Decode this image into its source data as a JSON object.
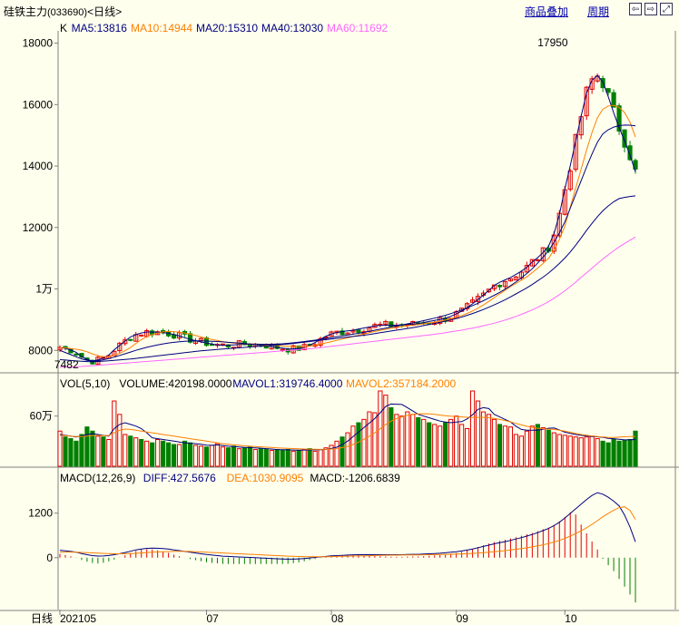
{
  "window": {
    "title": "硅铁主力",
    "code": "(033690)",
    "period_tag": "<日线>",
    "links": [
      "商品叠加",
      "周期"
    ],
    "nav_icons": [
      "arrow-left-icon",
      "arrow-right-icon",
      "expand-icon"
    ]
  },
  "colors": {
    "background": "#ffffee",
    "up": "#e00000",
    "down": "#008000",
    "ma5": "#000080",
    "ma10": "#ff8000",
    "ma20": "#000080",
    "ma40": "#000080",
    "ma60": "#ff66ff",
    "diff": "#000080",
    "dea": "#ff8000"
  },
  "chart_data": [
    {
      "type": "candlestick",
      "panel": "price",
      "legend": [
        {
          "label": "K",
          "color": "#000000"
        },
        {
          "label": "MA5:13816",
          "color": "#000080"
        },
        {
          "label": "MA10:14944",
          "color": "#ff8000"
        },
        {
          "label": "MA20:15310",
          "color": "#000080"
        },
        {
          "label": "MA40:13030",
          "color": "#000080"
        },
        {
          "label": "MA60:11692",
          "color": "#ff66ff"
        }
      ],
      "ylim": [
        7300,
        18400
      ],
      "yticks": [
        {
          "v": 8000,
          "t": "8000"
        },
        {
          "v": 10000,
          "t": "1万"
        },
        {
          "v": 12000,
          "t": "12000"
        },
        {
          "v": 14000,
          "t": "14000"
        },
        {
          "v": 16000,
          "t": "16000"
        },
        {
          "v": 18000,
          "t": "18000"
        }
      ],
      "xticks": [
        {
          "i": 0,
          "t": "202105"
        },
        {
          "i": 27,
          "t": "07"
        },
        {
          "i": 50,
          "t": "08"
        },
        {
          "i": 73,
          "t": "09"
        },
        {
          "i": 93,
          "t": "10"
        }
      ],
      "annotations": [
        {
          "i": 93,
          "v": 17950,
          "t": "17950"
        },
        {
          "i": 4,
          "v": 7482,
          "t": "7482"
        }
      ],
      "candles_count": 107,
      "ma_lines": [
        {
          "name": "MA5",
          "color": "#000080",
          "values": [
            8100,
            8050,
            7950,
            7750,
            7650,
            7700,
            7800,
            8050,
            8250,
            8450,
            8550,
            8600,
            8600,
            8580,
            8550,
            8480,
            8400,
            8330,
            8270,
            8220,
            8180,
            8160,
            8180,
            8200,
            8200,
            8190,
            8170,
            8120,
            8080,
            8050,
            8050,
            8100,
            8200,
            8350,
            8500,
            8580,
            8620,
            8650,
            8700,
            8750,
            8800,
            8820,
            8820,
            8820,
            8850,
            8850,
            8900,
            8950,
            9000,
            9050,
            9150,
            9280,
            9450,
            9650,
            9850,
            10100,
            10250,
            10350,
            10500,
            10650,
            10900,
            11100,
            11400,
            12000,
            13200,
            14300,
            15500,
            16600,
            17000,
            16700,
            15900,
            15200,
            14600,
            13816
          ]
        },
        {
          "name": "MA10",
          "color": "#ff8000",
          "values": [
            8100,
            8075,
            8040,
            8000,
            7900,
            7810,
            7790,
            7840,
            7950,
            8100,
            8300,
            8450,
            8540,
            8600,
            8620,
            8600,
            8560,
            8500,
            8430,
            8370,
            8320,
            8270,
            8240,
            8220,
            8210,
            8200,
            8190,
            8170,
            8150,
            8130,
            8120,
            8120,
            8150,
            8200,
            8260,
            8320,
            8380,
            8440,
            8500,
            8560,
            8620,
            8670,
            8720,
            8760,
            8800,
            8830,
            8860,
            8900,
            8940,
            8990,
            9060,
            9140,
            9240,
            9370,
            9520,
            9700,
            9880,
            10050,
            10200,
            10350,
            10550,
            10760,
            11000,
            11400,
            12000,
            12900,
            13800,
            14700,
            15500,
            15900,
            16000,
            15900,
            15650,
            14944
          ]
        },
        {
          "name": "MA20",
          "color": "#000080",
          "values": [
            8000,
            7900,
            7800,
            7700,
            7650,
            7670,
            7720,
            7790,
            7870,
            7950,
            8030,
            8100,
            8160,
            8210,
            8250,
            8280,
            8300,
            8310,
            8310,
            8300,
            8290,
            8270,
            8250,
            8230,
            8210,
            8200,
            8200,
            8200,
            8210,
            8230,
            8260,
            8290,
            8320,
            8360,
            8400,
            8440,
            8480,
            8520,
            8560,
            8610,
            8660,
            8710,
            8760,
            8810,
            8860,
            8910,
            8960,
            9020,
            9080,
            9150,
            9230,
            9320,
            9420,
            9530,
            9650,
            9780,
            9920,
            10080,
            10250,
            10450,
            10680,
            10950,
            11250,
            11650,
            12150,
            12800,
            13450,
            14100,
            14700,
            15100,
            15250,
            15320,
            15340,
            15310
          ]
        },
        {
          "name": "MA40",
          "color": "#000080",
          "values": [
            7700,
            7680,
            7660,
            7640,
            7630,
            7640,
            7660,
            7680,
            7700,
            7720,
            7750,
            7780,
            7810,
            7840,
            7870,
            7900,
            7930,
            7960,
            7990,
            8010,
            8030,
            8050,
            8070,
            8090,
            8110,
            8130,
            8150,
            8170,
            8190,
            8210,
            8240,
            8270,
            8300,
            8330,
            8360,
            8390,
            8420,
            8450,
            8480,
            8510,
            8550,
            8590,
            8630,
            8670,
            8710,
            8750,
            8800,
            8850,
            8900,
            8960,
            9020,
            9090,
            9170,
            9260,
            9360,
            9470,
            9590,
            9720,
            9860,
            10000,
            10160,
            10330,
            10520,
            10740,
            10990,
            11280,
            11620,
            11980,
            12300,
            12580,
            12800,
            12950,
            13000,
            13030
          ]
        },
        {
          "name": "MA60",
          "color": "#ff66ff",
          "values": [
            7450,
            7460,
            7470,
            7480,
            7500,
            7520,
            7540,
            7560,
            7580,
            7600,
            7620,
            7640,
            7660,
            7680,
            7700,
            7720,
            7740,
            7760,
            7780,
            7800,
            7820,
            7840,
            7860,
            7880,
            7900,
            7920,
            7940,
            7960,
            7980,
            8000,
            8020,
            8040,
            8060,
            8090,
            8120,
            8150,
            8180,
            8210,
            8240,
            8270,
            8300,
            8330,
            8360,
            8390,
            8420,
            8450,
            8480,
            8510,
            8540,
            8580,
            8620,
            8660,
            8710,
            8760,
            8820,
            8880,
            8950,
            9030,
            9120,
            9220,
            9330,
            9450,
            9590,
            9750,
            9930,
            10130,
            10350,
            10570,
            10790,
            11000,
            11200,
            11380,
            11540,
            11692
          ]
        }
      ]
    },
    {
      "type": "bar",
      "panel": "volume",
      "legend": [
        {
          "label": "VOL(5,10)",
          "color": "#000000"
        },
        {
          "label": "VOLUME:420198.0000",
          "color": "#000000"
        },
        {
          "label": "MAVOL1:319746.4000",
          "color": "#000080"
        },
        {
          "label": "MAVOL2:357184.2000",
          "color": "#ff8000"
        }
      ],
      "ylim": [
        0,
        900000
      ],
      "yticks": [
        {
          "v": 600000,
          "t": "60万"
        }
      ],
      "values": [
        420000,
        350000,
        330000,
        300000,
        380000,
        470000,
        420000,
        360000,
        350000,
        320000,
        780000,
        620000,
        380000,
        360000,
        340000,
        320000,
        300000,
        280000,
        320000,
        300000,
        280000,
        260000,
        260000,
        300000,
        280000,
        250000,
        240000,
        230000,
        250000,
        270000,
        230000,
        220000,
        240000,
        210000,
        220000,
        230000,
        200000,
        210000,
        200000,
        190000,
        200000,
        190000,
        200000,
        180000,
        190000,
        200000,
        210000,
        180000,
        200000,
        220000,
        250000,
        300000,
        350000,
        400000,
        480000,
        520000,
        560000,
        650000,
        640000,
        900000,
        850000,
        700000,
        620000,
        600000,
        650000,
        620000,
        580000,
        560000,
        520000,
        500000,
        480000,
        520000,
        560000,
        600000,
        500000,
        450000,
        900000,
        780000,
        650000,
        620000,
        560000,
        500000,
        480000,
        470000,
        380000,
        360000,
        420000,
        480000,
        500000,
        460000,
        430000,
        400000,
        380000,
        370000,
        360000,
        350000,
        340000,
        350000,
        360000,
        330000,
        300000,
        280000,
        320000,
        300000,
        310000,
        320000,
        420198
      ],
      "mavol1": [
        380000,
        370000,
        360000,
        350000,
        360000,
        380000,
        390000,
        380000,
        370000,
        360000,
        450000,
        500000,
        520000,
        500000,
        480000,
        450000,
        400000,
        340000,
        330000,
        320000,
        310000,
        300000,
        290000,
        280000,
        275000,
        270000,
        262000,
        252000,
        250000,
        255000,
        248000,
        240000,
        236000,
        230000,
        226000,
        222000,
        220000,
        216000,
        210000,
        206000,
        200000,
        198000,
        196000,
        194000,
        192000,
        194000,
        196000,
        196000,
        198000,
        202000,
        212000,
        228000,
        260000,
        300000,
        356000,
        410000,
        462000,
        516000,
        570000,
        640000,
        716000,
        744000,
        742000,
        738000,
        700000,
        660000,
        620000,
        600000,
        580000,
        560000,
        540000,
        528000,
        520000,
        528000,
        534000,
        566000,
        616000,
        680000,
        700000,
        690000,
        620000,
        590000,
        560000,
        530000,
        478000,
        440000,
        432000,
        430000,
        432000,
        442000,
        454000,
        458000,
        434000,
        408000,
        392000,
        380000,
        370000,
        362000,
        356000,
        352000,
        346000,
        334000,
        330000,
        322000,
        316000,
        316000,
        319746
      ],
      "mavol2": [
        370000,
        365000,
        360000,
        355000,
        355000,
        360000,
        365000,
        368000,
        368000,
        366000,
        400000,
        430000,
        445000,
        440000,
        430000,
        420000,
        410000,
        400000,
        390000,
        380000,
        370000,
        360000,
        350000,
        340000,
        330000,
        320000,
        310000,
        300000,
        290000,
        280000,
        270000,
        262000,
        256000,
        250000,
        245000,
        240000,
        236000,
        232000,
        228000,
        224000,
        220000,
        217000,
        214000,
        211000,
        208000,
        206000,
        204000,
        203000,
        202000,
        203000,
        206000,
        212000,
        222000,
        238000,
        260000,
        290000,
        322000,
        358000,
        400000,
        448000,
        500000,
        540000,
        570000,
        590000,
        610000,
        620000,
        626000,
        628000,
        626000,
        620000,
        612000,
        604000,
        598000,
        594000,
        590000,
        586000,
        584000,
        584000,
        584000,
        580000,
        572000,
        560000,
        546000,
        530000,
        512000,
        494000,
        478000,
        464000,
        454000,
        448000,
        444000,
        440000,
        432000,
        420000,
        406000,
        392000,
        380000,
        370000,
        362000,
        356000,
        350000,
        345000,
        345000,
        348000,
        352000,
        355000,
        357184
      ]
    },
    {
      "type": "bar",
      "panel": "macd",
      "legend": [
        {
          "label": "MACD(12,26,9)",
          "color": "#000000"
        },
        {
          "label": "DIFF:427.5676",
          "color": "#000080"
        },
        {
          "label": "DEA:1030.9095",
          "color": "#ff8000"
        },
        {
          "label": "MACD:-1206.6839",
          "color": "#000000"
        }
      ],
      "ylim": [
        -1400,
        2000
      ],
      "yticks": [
        {
          "v": 0,
          "t": "0"
        },
        {
          "v": 1200,
          "t": "1200"
        }
      ],
      "diff": [
        200,
        180,
        150,
        100,
        60,
        40,
        50,
        80,
        120,
        170,
        220,
        250,
        260,
        250,
        230,
        200,
        170,
        140,
        110,
        80,
        60,
        40,
        30,
        20,
        10,
        0,
        -10,
        -20,
        -30,
        -40,
        -40,
        -30,
        -10,
        10,
        30,
        50,
        60,
        70,
        80,
        80,
        80,
        80,
        80,
        80,
        80,
        90,
        90,
        100,
        110,
        120,
        140,
        160,
        190,
        230,
        280,
        330,
        380,
        420,
        470,
        520,
        580,
        640,
        720,
        800,
        920,
        1080,
        1260,
        1440,
        1620,
        1760,
        1700,
        1560,
        1380,
        1000,
        427.57
      ],
      "dea": [
        150,
        150,
        150,
        140,
        130,
        120,
        110,
        105,
        105,
        110,
        120,
        135,
        150,
        160,
        165,
        170,
        170,
        165,
        155,
        145,
        135,
        125,
        115,
        105,
        95,
        85,
        75,
        65,
        55,
        45,
        35,
        30,
        25,
        25,
        25,
        30,
        35,
        40,
        45,
        50,
        55,
        60,
        65,
        68,
        70,
        73,
        75,
        78,
        81,
        85,
        90,
        96,
        104,
        115,
        128,
        145,
        165,
        185,
        210,
        235,
        265,
        300,
        340,
        390,
        450,
        525,
        615,
        720,
        840,
        980,
        1130,
        1260,
        1360,
        1380,
        1030.91
      ],
      "macd": [
        100,
        60,
        0,
        -80,
        -140,
        -160,
        -120,
        -50,
        30,
        120,
        200,
        230,
        220,
        180,
        130,
        60,
        0,
        -50,
        -90,
        -130,
        -150,
        -170,
        -170,
        -170,
        -170,
        -170,
        -170,
        -170,
        -170,
        -170,
        -150,
        -120,
        -70,
        -30,
        10,
        40,
        50,
        60,
        70,
        60,
        50,
        40,
        30,
        24,
        20,
        34,
        30,
        44,
        58,
        70,
        100,
        128,
        172,
        230,
        304,
        370,
        430,
        470,
        520,
        570,
        630,
        680,
        760,
        820,
        940,
        1110,
        1290,
        900,
        560,
        260,
        -100,
        -300,
        -600,
        -900,
        -1206.68
      ]
    }
  ]
}
